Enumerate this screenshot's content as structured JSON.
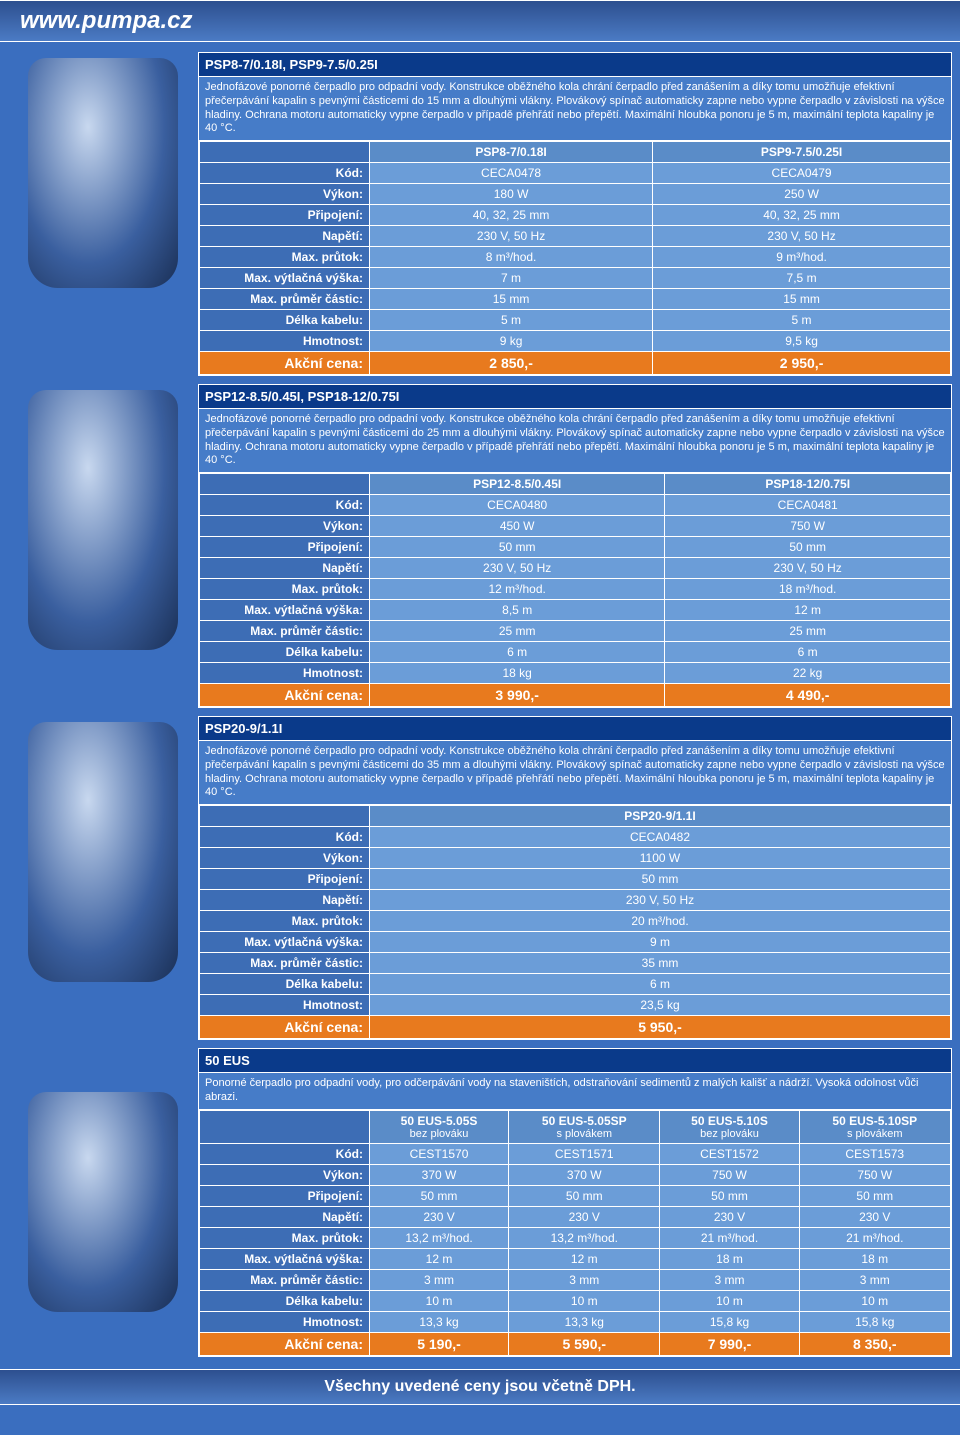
{
  "site_header": "www.pumpa.cz",
  "footer_text": "Všechny uvedené ceny jsou včetně DPH.",
  "labels": {
    "kod": "Kód:",
    "vykon": "Výkon:",
    "pripojeni": "Připojení:",
    "napeti": "Napětí:",
    "max_prutok": "Max. průtok:",
    "max_vytlak": "Max. výtlačná výška:",
    "max_castic": "Max. průměr částic:",
    "delka_kabelu": "Délka kabelu:",
    "hmotnost": "Hmotnost:",
    "akcni_cena": "Akční cena:"
  },
  "p1": {
    "title": "PSP8-7/0.18I, PSP9-7.5/0.25I",
    "desc": "Jednofázové ponorné čerpadlo pro odpadní vody. Konstrukce oběžného kola chrání čerpadlo před zanášením a díky tomu umožňuje efektivní přečerpávání kapalin s pevnými částicemi do 15 mm a dlouhými vlákny. Plovákový spínač automaticky zapne nebo vypne čerpadlo v závislosti na výšce hladiny. Ochrana motoru automaticky vypne čerpadlo v případě přehřátí nebo přepětí. Maximální hloubka ponoru je 5 m, maximální teplota kapaliny je 40 °C.",
    "cols": [
      {
        "model": "PSP8-7/0.18I",
        "kod": "CECA0478",
        "vykon": "180 W",
        "pripojeni": "40, 32, 25 mm",
        "napeti": "230 V, 50 Hz",
        "prutok": "8 m³/hod.",
        "vytlak": "7 m",
        "castic": "15 mm",
        "kabel": "5 m",
        "hmot": "9 kg",
        "cena": "2 850,-"
      },
      {
        "model": "PSP9-7.5/0.25I",
        "kod": "CECA0479",
        "vykon": "250 W",
        "pripojeni": "40, 32, 25 mm",
        "napeti": "230 V, 50 Hz",
        "prutok": "9 m³/hod.",
        "vytlak": "7,5 m",
        "castic": "15 mm",
        "kabel": "5 m",
        "hmot": "9,5 kg",
        "cena": "2 950,-"
      }
    ]
  },
  "p2": {
    "title": "PSP12-8.5/0.45I, PSP18-12/0.75I",
    "desc": "Jednofázové ponorné čerpadlo pro odpadní vody. Konstrukce oběžného kola chrání čerpadlo před zanášením a díky tomu umožňuje efektivní přečerpávání kapalin s pevnými částicemi do 25 mm a dlouhými vlákny. Plovákový spínač automaticky zapne nebo vypne čerpadlo v závislosti na výšce hladiny. Ochrana motoru automaticky vypne čerpadlo v případě přehřátí nebo přepětí. Maximální hloubka ponoru je 5 m, maximální teplota kapaliny je 40 °C.",
    "cols": [
      {
        "model": "PSP12-8.5/0.45I",
        "kod": "CECA0480",
        "vykon": "450 W",
        "pripojeni": "50 mm",
        "napeti": "230 V, 50 Hz",
        "prutok": "12 m³/hod.",
        "vytlak": "8,5 m",
        "castic": "25 mm",
        "kabel": "6 m",
        "hmot": "18 kg",
        "cena": "3 990,-"
      },
      {
        "model": "PSP18-12/0.75I",
        "kod": "CECA0481",
        "vykon": "750 W",
        "pripojeni": "50 mm",
        "napeti": "230 V, 50 Hz",
        "prutok": "18 m³/hod.",
        "vytlak": "12 m",
        "castic": "25 mm",
        "kabel": "6 m",
        "hmot": "22 kg",
        "cena": "4 490,-"
      }
    ]
  },
  "p3": {
    "title": "PSP20-9/1.1I",
    "desc": "Jednofázové ponorné čerpadlo pro odpadní vody. Konstrukce oběžného kola chrání čerpadlo před zanášením a díky tomu umožňuje efektivní přečerpávání kapalin s pevnými částicemi do 35 mm a dlouhými vlákny. Plovákový spínač automaticky zapne nebo vypne čerpadlo v závislosti na výšce hladiny. Ochrana motoru automaticky vypne čerpadlo v případě přehřátí nebo přepětí. Maximální hloubka ponoru je 5 m, maximální teplota kapaliny je 40 °C.",
    "cols": [
      {
        "model": "PSP20-9/1.1I",
        "kod": "CECA0482",
        "vykon": "1100 W",
        "pripojeni": "50 mm",
        "napeti": "230 V, 50 Hz",
        "prutok": "20 m³/hod.",
        "vytlak": "9 m",
        "castic": "35 mm",
        "kabel": "6 m",
        "hmot": "23,5 kg",
        "cena": "5 950,-"
      }
    ]
  },
  "p4": {
    "title": "50 EUS",
    "desc": "Ponorné čerpadlo pro odpadní vody, pro odčerpávání vody na staveništích, odstraňování sedimentů z malých kališť a nádrží. Vysoká odolnost vůči abrazi.",
    "cols": [
      {
        "model": "50 EUS-5.05S",
        "sub": "bez plováku",
        "kod": "CEST1570",
        "vykon": "370 W",
        "pripojeni": "50 mm",
        "napeti": "230 V",
        "prutok": "13,2 m³/hod.",
        "vytlak": "12 m",
        "castic": "3 mm",
        "kabel": "10 m",
        "hmot": "13,3 kg",
        "cena": "5 190,-"
      },
      {
        "model": "50 EUS-5.05SP",
        "sub": "s plovákem",
        "kod": "CEST1571",
        "vykon": "370 W",
        "pripojeni": "50 mm",
        "napeti": "230 V",
        "prutok": "13,2 m³/hod.",
        "vytlak": "12 m",
        "castic": "3 mm",
        "kabel": "10 m",
        "hmot": "13,3 kg",
        "cena": "5 590,-"
      },
      {
        "model": "50 EUS-5.10S",
        "sub": "bez plováku",
        "kod": "CEST1572",
        "vykon": "750 W",
        "pripojeni": "50 mm",
        "napeti": "230 V",
        "prutok": "21 m³/hod.",
        "vytlak": "18 m",
        "castic": "3 mm",
        "kabel": "10 m",
        "hmot": "15,8 kg",
        "cena": "7 990,-"
      },
      {
        "model": "50 EUS-5.10SP",
        "sub": "s plovákem",
        "kod": "CEST1573",
        "vykon": "750 W",
        "pripojeni": "50 mm",
        "napeti": "230 V",
        "prutok": "21 m³/hod.",
        "vytlak": "18 m",
        "castic": "3 mm",
        "kabel": "10 m",
        "hmot": "15,8 kg",
        "cena": "8 350,-"
      }
    ]
  }
}
